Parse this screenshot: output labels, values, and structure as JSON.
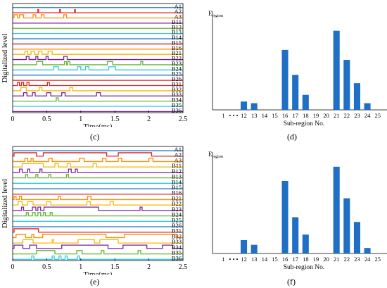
{
  "captions": {
    "c": "(c)",
    "d": "(d)",
    "e": "(e)",
    "f": "(f)"
  },
  "colors": {
    "blue": "#1f78c8",
    "red": "#e02020",
    "orange": "#ff8c00",
    "yellow": "#f5b800",
    "purple": "#7a1fa2",
    "green": "#5db82e",
    "cyan": "#33c8e0",
    "bar": "#1f6fc5"
  },
  "chart_data": [
    {
      "panel": "c",
      "type": "line",
      "ylabel": "Digitalized level",
      "xlabel": "Time(ms)",
      "x_ticks": [
        "0",
        "0.5",
        "1",
        "1.5",
        "2",
        "2.5"
      ],
      "xlim": [
        0,
        2.5
      ],
      "series": [
        {
          "name": "A1",
          "color": "blue",
          "pulses": []
        },
        {
          "name": "A2",
          "color": "red",
          "pulses": [
            [
              0.37,
              0.38
            ],
            [
              0.69,
              0.7
            ],
            [
              0.91,
              0.92
            ]
          ]
        },
        {
          "name": "A3",
          "color": "orange",
          "pulses": [
            [
              0.02,
              0.07
            ],
            [
              0.1,
              0.16
            ],
            [
              0.3,
              0.34
            ],
            [
              0.42,
              0.46
            ],
            [
              0.75,
              0.79
            ]
          ]
        },
        {
          "name": "B11",
          "color": "purple",
          "pulses": []
        },
        {
          "name": "B12",
          "color": "green",
          "pulses": []
        },
        {
          "name": "B13",
          "color": "cyan",
          "pulses": []
        },
        {
          "name": "B14",
          "color": "blue",
          "pulses": []
        },
        {
          "name": "B15",
          "color": "red",
          "pulses": []
        },
        {
          "name": "B16",
          "color": "orange",
          "pulses": []
        },
        {
          "name": "B21",
          "color": "yellow",
          "pulses": [
            [
              0.18,
              0.22
            ],
            [
              0.27,
              0.32
            ],
            [
              0.38,
              0.43
            ],
            [
              0.52,
              0.58
            ]
          ]
        },
        {
          "name": "B22",
          "color": "purple",
          "pulses": [
            [
              0.2,
              0.24
            ],
            [
              0.34,
              0.37
            ],
            [
              0.49,
              0.52
            ],
            [
              0.75,
              0.8
            ]
          ]
        },
        {
          "name": "B23",
          "color": "green",
          "pulses": [
            [
              0.35,
              0.44
            ],
            [
              0.76,
              0.79
            ],
            [
              0.81,
              0.84
            ],
            [
              1.39,
              1.47
            ],
            [
              1.88,
              1.91
            ]
          ]
        },
        {
          "name": "B24",
          "color": "cyan",
          "pulses": [
            [
              0.6,
              0.67
            ],
            [
              0.95,
              1.0
            ],
            [
              1.07,
              1.12
            ],
            [
              1.41,
              1.51
            ]
          ]
        },
        {
          "name": "B25",
          "color": "blue",
          "pulses": []
        },
        {
          "name": "B26",
          "color": "red",
          "pulses": []
        },
        {
          "name": "B31",
          "color": "red",
          "pulses": [
            [
              0.07,
              0.1
            ],
            [
              0.13,
              0.16
            ],
            [
              0.21,
              0.24
            ],
            [
              0.51,
              0.54
            ]
          ]
        },
        {
          "name": "B32",
          "color": "yellow",
          "pulses": [
            [
              0.12,
              0.2
            ],
            [
              0.39,
              0.43
            ],
            [
              0.84,
              0.88
            ]
          ]
        },
        {
          "name": "B33",
          "color": "purple",
          "pulses": [
            [
              0.16,
              0.21
            ],
            [
              0.29,
              0.33
            ],
            [
              0.5,
              0.56
            ],
            [
              0.72,
              0.77
            ],
            [
              1.23,
              1.29
            ]
          ]
        },
        {
          "name": "B34",
          "color": "green",
          "pulses": [
            [
              0.64,
              0.67
            ]
          ]
        },
        {
          "name": "B35",
          "color": "cyan",
          "pulses": []
        },
        {
          "name": "B36",
          "color": "purple",
          "pulses": []
        }
      ]
    },
    {
      "panel": "d",
      "type": "bar",
      "ylabel_main": "E",
      "ylabel_sub": "region",
      "xlabel": "Sub-region No.",
      "categories": [
        "1",
        "• • •",
        "12",
        "13",
        "14",
        "15",
        "16",
        "17",
        "18",
        "19",
        "20",
        "21",
        "22",
        "23",
        "24",
        "25"
      ],
      "values": [
        0,
        0,
        10,
        8,
        0,
        0,
        72,
        42,
        18,
        0,
        0,
        95,
        60,
        32,
        8,
        0
      ],
      "ylim": [
        0,
        115
      ]
    },
    {
      "panel": "e",
      "type": "line",
      "ylabel": "Digitalized  level",
      "xlabel": "Time(ms)",
      "x_ticks": [
        "0",
        "0.5",
        "1",
        "1.5",
        "2",
        "2.5"
      ],
      "xlim": [
        0,
        2.5
      ],
      "series": [
        {
          "name": "A1",
          "color": "blue",
          "pulses": []
        },
        {
          "name": "A2",
          "color": "red",
          "pulses": [
            [
              0.02,
              0.35
            ],
            [
              0.45,
              1.38
            ],
            [
              1.55,
              2.04
            ]
          ]
        },
        {
          "name": "A3",
          "color": "orange",
          "pulses": [
            [
              0.18,
              0.22
            ],
            [
              0.27,
              0.3
            ],
            [
              0.53,
              0.58
            ],
            [
              0.98,
              1.05
            ],
            [
              1.32,
              1.37
            ],
            [
              1.55,
              1.6
            ],
            [
              2.0,
              2.06
            ]
          ]
        },
        {
          "name": "B11",
          "color": "yellow",
          "pulses": [
            [
              0.14,
              0.45
            ],
            [
              0.62,
              0.67
            ],
            [
              0.8,
              0.85
            ],
            [
              1.18,
              1.23
            ]
          ]
        },
        {
          "name": "B12",
          "color": "purple",
          "pulses": [
            [
              0.1,
              0.14
            ],
            [
              0.22,
              0.25
            ],
            [
              0.4,
              0.43
            ],
            [
              0.82,
              0.86
            ],
            [
              0.92,
              0.95
            ]
          ]
        },
        {
          "name": "B13",
          "color": "green",
          "pulses": [
            [
              0.19,
              0.22
            ],
            [
              0.34,
              0.37
            ],
            [
              0.53,
              0.56
            ],
            [
              0.79,
              0.82
            ]
          ]
        },
        {
          "name": "B14",
          "color": "cyan",
          "pulses": []
        },
        {
          "name": "B15",
          "color": "blue",
          "pulses": []
        },
        {
          "name": "B16",
          "color": "red",
          "pulses": []
        },
        {
          "name": "B21",
          "color": "orange",
          "pulses": [
            [
              0.02,
              0.05
            ],
            [
              0.1,
              0.13
            ],
            [
              0.67,
              0.7
            ],
            [
              1.1,
              1.15
            ]
          ]
        },
        {
          "name": "B22",
          "color": "yellow",
          "pulses": [
            [
              0.08,
              0.14
            ],
            [
              0.22,
              0.3
            ],
            [
              0.5,
              0.56
            ],
            [
              1.09,
              1.14
            ],
            [
              1.43,
              1.48
            ]
          ]
        },
        {
          "name": "B23",
          "color": "purple",
          "pulses": [
            [
              0.13,
              0.16
            ],
            [
              0.29,
              0.34
            ],
            [
              0.37,
              0.41
            ],
            [
              0.46,
              1.26
            ],
            [
              1.87,
              1.9
            ]
          ]
        },
        {
          "name": "B24",
          "color": "green",
          "pulses": [
            [
              0.2,
              0.23
            ],
            [
              0.29,
              0.33
            ],
            [
              0.37,
              0.41
            ],
            [
              0.45,
              0.48
            ],
            [
              0.55,
              0.58
            ]
          ]
        },
        {
          "name": "B25",
          "color": "cyan",
          "pulses": []
        },
        {
          "name": "B26",
          "color": "blue",
          "pulses": []
        },
        {
          "name": "B31",
          "color": "red",
          "pulses": [
            [
              0.02,
              0.38
            ]
          ]
        },
        {
          "name": "B32",
          "color": "orange",
          "pulses": [
            [
              0.05,
              0.19
            ],
            [
              0.28,
              0.31
            ],
            [
              0.44,
              1.37
            ],
            [
              1.64,
              2.4
            ]
          ]
        },
        {
          "name": "B33",
          "color": "yellow",
          "pulses": [
            [
              0.15,
              0.3
            ],
            [
              0.58,
              0.6
            ],
            [
              0.96,
              1.2
            ],
            [
              1.28,
              1.55
            ]
          ]
        },
        {
          "name": "B34",
          "color": "purple",
          "pulses": [
            [
              0.02,
              0.15
            ],
            [
              0.25,
              0.35
            ],
            [
              0.72,
              1.4
            ],
            [
              1.62,
              1.97
            ],
            [
              2.2,
              2.35
            ]
          ]
        },
        {
          "name": "B35",
          "color": "green",
          "pulses": [
            [
              0.35,
              0.62
            ],
            [
              0.94,
              1.02
            ],
            [
              1.3,
              1.34
            ],
            [
              1.84,
              1.88
            ]
          ]
        },
        {
          "name": "B36",
          "color": "cyan",
          "pulses": [
            [
              0.28,
              0.31
            ],
            [
              0.58,
              0.61
            ],
            [
              0.68,
              0.71
            ],
            [
              0.77,
              0.8
            ],
            [
              0.95,
              0.98
            ]
          ]
        }
      ]
    },
    {
      "panel": "f",
      "type": "bar",
      "ylabel_main": "E",
      "ylabel_sub": "region",
      "xlabel": "Sub-region No.",
      "categories": [
        "1",
        "• • •",
        "12",
        "13",
        "14",
        "15",
        "16",
        "17",
        "18",
        "19",
        "20",
        "21",
        "22",
        "23",
        "24",
        "25"
      ],
      "values": [
        0,
        0,
        17,
        11,
        0,
        0,
        92,
        46,
        24,
        0,
        0,
        110,
        70,
        40,
        7,
        0
      ],
      "ylim": [
        0,
        125
      ]
    }
  ]
}
